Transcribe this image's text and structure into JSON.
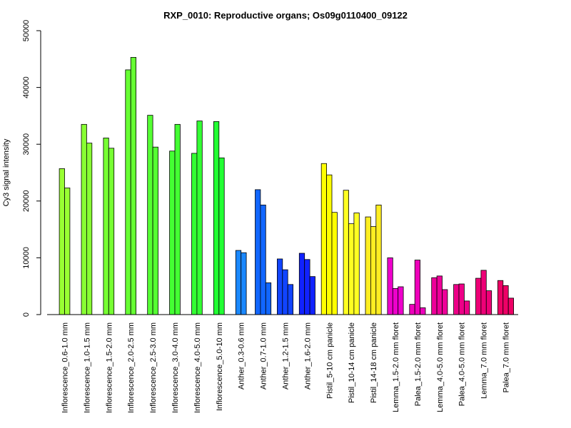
{
  "chart_data": {
    "type": "bar",
    "title": "RXP_0010: Reproductive organs; Os09g0110400_09122",
    "xlabel": "",
    "ylabel": "Cy3 signal intensity",
    "ylim": [
      0,
      50000
    ],
    "yticks": [
      0,
      10000,
      20000,
      30000,
      40000,
      50000
    ],
    "grid": false,
    "legend": "none",
    "groups": [
      {
        "label": "Inflorescence_0.6-1.0 mm",
        "values": [
          25700,
          22300
        ],
        "color": "#99ff33"
      },
      {
        "label": "Inflorescence_1.0-1.5 mm",
        "values": [
          33500,
          30200
        ],
        "color": "#88ff33"
      },
      {
        "label": "Inflorescence_1.5-2.0 mm",
        "values": [
          31100,
          29300
        ],
        "color": "#77ff33"
      },
      {
        "label": "Inflorescence_2.0-2.5 mm",
        "values": [
          43100,
          45300
        ],
        "color": "#66ff33"
      },
      {
        "label": "Inflorescence_2.5-3.0 mm",
        "values": [
          35100,
          29500
        ],
        "color": "#55ff33"
      },
      {
        "label": "Inflorescence_3.0-4.0 mm",
        "values": [
          28800,
          33500
        ],
        "color": "#44ff33"
      },
      {
        "label": "Inflorescence_4.0-5.0 mm",
        "values": [
          28400,
          34100
        ],
        "color": "#33ff33"
      },
      {
        "label": "Inflorescence_5.0-10 mm",
        "values": [
          34000,
          27600
        ],
        "color": "#22ff33"
      },
      {
        "label": "Anther_0.3-0.6 mm",
        "values": [
          11300,
          10900
        ],
        "color": "#1a88ff"
      },
      {
        "label": "Anther_0.7-1.0 mm",
        "values": [
          22000,
          19300,
          5600
        ],
        "color": "#1166ff"
      },
      {
        "label": "Anther_1.2-1.5 mm",
        "values": [
          9800,
          7900,
          5300
        ],
        "color": "#1144ff"
      },
      {
        "label": "Anther_1.6-2.0 mm",
        "values": [
          10800,
          9700,
          6700
        ],
        "color": "#1122ff"
      },
      {
        "label": "Pistil_5-10 cm panicle",
        "values": [
          26600,
          24600,
          18000
        ],
        "color": "#ffff00"
      },
      {
        "label": "Pistil_10-14 cm panicle",
        "values": [
          21900,
          16000,
          17900
        ],
        "color": "#ffff22"
      },
      {
        "label": "Pistil_14-18 cm panicle",
        "values": [
          17200,
          15500,
          19300
        ],
        "color": "#ffee22"
      },
      {
        "label": "Lemma_1.5-2.0 mm floret",
        "values": [
          10000,
          4600,
          4900
        ],
        "color": "#ee00cc"
      },
      {
        "label": "Palea_1.5-2.0 mm floret",
        "values": [
          1800,
          9600,
          1200
        ],
        "color": "#ee00bb"
      },
      {
        "label": "Lemma_4.0-5.0 mm floret",
        "values": [
          6500,
          6800,
          4400
        ],
        "color": "#ee0099"
      },
      {
        "label": "Palea_4.0-5.0 mm floret",
        "values": [
          5300,
          5400,
          2400
        ],
        "color": "#ee0088"
      },
      {
        "label": "Lemma_7.0 mm floret",
        "values": [
          6400,
          7800,
          4200
        ],
        "color": "#ee0077"
      },
      {
        "label": "Palea_7.0 mm floret",
        "values": [
          6000,
          5100,
          2900
        ],
        "color": "#ee0066"
      }
    ]
  }
}
